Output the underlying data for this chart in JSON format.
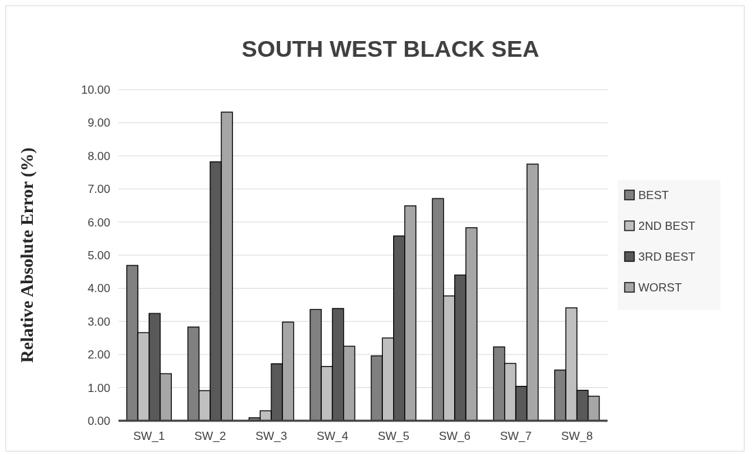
{
  "chart_data": {
    "type": "bar",
    "title": "SOUTH WEST BLACK SEA",
    "ylabel": "Relative Absolute Error (%)",
    "categories": [
      "SW_1",
      "SW_2",
      "SW_3",
      "SW_4",
      "SW_5",
      "SW_6",
      "SW_7",
      "SW_8"
    ],
    "series": [
      {
        "name": "BEST",
        "color": "#808080",
        "values": [
          4.69,
          2.83,
          0.09,
          3.36,
          1.96,
          6.71,
          2.23,
          1.53
        ]
      },
      {
        "name": "2ND BEST",
        "color": "#bfbfbf",
        "values": [
          2.66,
          0.91,
          0.3,
          1.64,
          2.5,
          3.77,
          1.73,
          3.41
        ]
      },
      {
        "name": "3RD BEST",
        "color": "#595959",
        "values": [
          3.24,
          7.82,
          1.72,
          3.39,
          5.58,
          4.4,
          1.04,
          0.92
        ]
      },
      {
        "name": "WORST",
        "color": "#a6a6a6",
        "values": [
          1.42,
          9.32,
          2.98,
          2.25,
          6.49,
          5.83,
          7.75,
          0.74
        ]
      }
    ],
    "ylim": [
      0,
      10
    ],
    "yticks": [
      {
        "value": 0,
        "label": "0.00"
      },
      {
        "value": 1,
        "label": "1.00"
      },
      {
        "value": 2,
        "label": "2.00"
      },
      {
        "value": 3,
        "label": "3.00"
      },
      {
        "value": 4,
        "label": "4.00"
      },
      {
        "value": 5,
        "label": "5.00"
      },
      {
        "value": 6,
        "label": "6.00"
      },
      {
        "value": 7,
        "label": "7.00"
      },
      {
        "value": 8,
        "label": "8.00"
      },
      {
        "value": 9,
        "label": "9.00"
      },
      {
        "value": 10,
        "label": "10.00"
      }
    ],
    "grid": "y",
    "legend": "right"
  }
}
